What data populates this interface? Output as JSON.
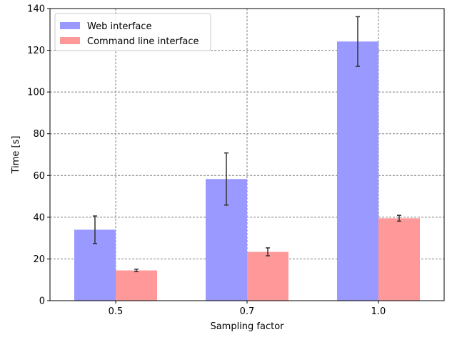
{
  "chart_data": {
    "type": "bar",
    "title": "",
    "xlabel": "Sampling factor",
    "ylabel": "Time [s]",
    "categories": [
      "0.5",
      "0.7",
      "1.0"
    ],
    "ylim": [
      0,
      140
    ],
    "yticks": [
      0,
      20,
      40,
      60,
      80,
      100,
      120,
      140
    ],
    "grid": true,
    "legend_position": "top-left",
    "series": [
      {
        "name": "Web interface",
        "color": "#9999ff",
        "values": [
          34,
          58.3,
          124.2
        ],
        "errors": [
          6.6,
          12.5,
          11.9
        ]
      },
      {
        "name": "Command line interface",
        "color": "#ff9999",
        "values": [
          14.5,
          23.4,
          39.5
        ],
        "errors": [
          0.6,
          1.9,
          1.4
        ]
      }
    ]
  }
}
